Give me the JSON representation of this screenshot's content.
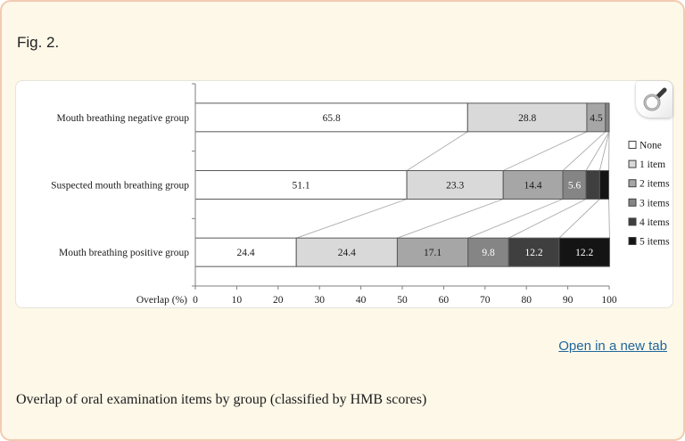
{
  "figure": {
    "label": "Fig. 2.",
    "caption": "Overlap of oral examination items by group (classified by HMB scores)"
  },
  "actions": {
    "open_link": "Open in a new tab"
  },
  "colors": {
    "page_bg": "#fdf8e8",
    "page_border": "#f2cbb1",
    "link": "#1f669e",
    "bar_border": "#595959",
    "axis": "#7f7f7f",
    "connector": "#ababab",
    "label_dark": "#1a1a1a",
    "label_light": "#ffffff",
    "series_fills": [
      "#ffffff",
      "#d9d9d9",
      "#a6a6a6",
      "#858585",
      "#3f3f3f",
      "#141414"
    ]
  },
  "chart_data": {
    "type": "bar",
    "orientation": "horizontal",
    "stacked": true,
    "title": "",
    "xlabel": "Overlap (%)",
    "ylabel": "",
    "xlim": [
      0,
      100
    ],
    "xticks": [
      0,
      10,
      20,
      30,
      40,
      50,
      60,
      70,
      80,
      90,
      100
    ],
    "legend_position": "right",
    "categories": [
      "Mouth breathing negative group",
      "Suspected mouth breathing group",
      "Mouth breathing positive group"
    ],
    "series": [
      {
        "name": "None",
        "values": [
          65.8,
          51.1,
          24.4
        ]
      },
      {
        "name": "1 item",
        "values": [
          28.8,
          23.3,
          24.4
        ]
      },
      {
        "name": "2 items",
        "values": [
          4.5,
          14.4,
          17.1
        ]
      },
      {
        "name": "3 items",
        "values": [
          0.9,
          5.6,
          9.8
        ]
      },
      {
        "name": "4 items",
        "values": [
          0,
          3.3,
          12.2
        ]
      },
      {
        "name": "5 items",
        "values": [
          0,
          2.2,
          12.2
        ]
      }
    ],
    "value_labels_shown": [
      "65.8",
      "28.8",
      "4.5",
      "51.1",
      "23.3",
      "14.4",
      "5.6",
      "24.4",
      "24.4",
      "17.1",
      "9.8",
      "12.2",
      "12.2"
    ]
  }
}
